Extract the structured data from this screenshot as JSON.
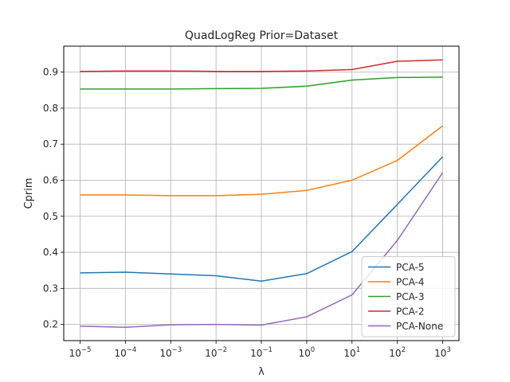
{
  "chart_data": {
    "type": "line",
    "title": "QuadLogReg Prior=Dataset",
    "xlabel": "λ",
    "ylabel": "Cprim",
    "x_scale": "log",
    "x": [
      1e-05,
      0.0001,
      0.001,
      0.01,
      0.1,
      1,
      10,
      100,
      1000
    ],
    "x_tick_labels": [
      {
        "base": "10",
        "exp": "−5"
      },
      {
        "base": "10",
        "exp": "−4"
      },
      {
        "base": "10",
        "exp": "−3"
      },
      {
        "base": "10",
        "exp": "−2"
      },
      {
        "base": "10",
        "exp": "−1"
      },
      {
        "base": "10",
        "exp": "0"
      },
      {
        "base": "10",
        "exp": "1"
      },
      {
        "base": "10",
        "exp": "2"
      },
      {
        "base": "10",
        "exp": "3"
      }
    ],
    "ylim": [
      0.155,
      0.972
    ],
    "y_ticks": [
      0.2,
      0.3,
      0.4,
      0.5,
      0.6,
      0.7,
      0.8,
      0.9
    ],
    "y_tick_labels": [
      "0.2",
      "0.3",
      "0.4",
      "0.5",
      "0.6",
      "0.7",
      "0.8",
      "0.9"
    ],
    "grid": true,
    "legend_position": "bottom-right",
    "series": [
      {
        "name": "PCA-5",
        "color": "#1f77b4",
        "values": [
          0.343,
          0.345,
          0.34,
          0.335,
          0.32,
          0.341,
          0.402,
          0.533,
          0.665
        ]
      },
      {
        "name": "PCA-4",
        "color": "#ff7f0e",
        "values": [
          0.559,
          0.559,
          0.557,
          0.557,
          0.561,
          0.572,
          0.6,
          0.655,
          0.751
        ]
      },
      {
        "name": "PCA-3",
        "color": "#2ca02c",
        "values": [
          0.853,
          0.853,
          0.853,
          0.854,
          0.855,
          0.861,
          0.878,
          0.885,
          0.886
        ]
      },
      {
        "name": "PCA-2",
        "color": "#d62728",
        "values": [
          0.902,
          0.903,
          0.903,
          0.902,
          0.902,
          0.903,
          0.907,
          0.93,
          0.934
        ]
      },
      {
        "name": "PCA-None",
        "color": "#9467bd",
        "values": [
          0.195,
          0.192,
          0.199,
          0.2,
          0.198,
          0.221,
          0.282,
          0.433,
          0.621
        ]
      }
    ]
  }
}
